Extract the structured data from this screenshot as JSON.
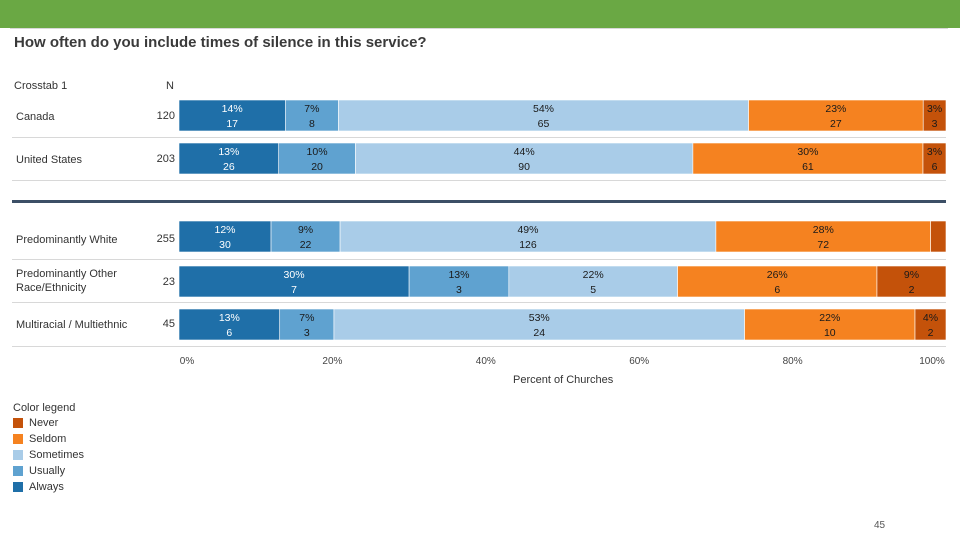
{
  "title": "How often do you include times of silence in this service?",
  "header": {
    "crosstab": "Crosstab 1",
    "n": "N"
  },
  "rows": [
    {
      "label": "Canada",
      "n": "120",
      "segments": [
        {
          "pct": "14%",
          "count": "17"
        },
        {
          "pct": "7%",
          "count": "8"
        },
        {
          "pct": "54%",
          "count": "65"
        },
        {
          "pct": "23%",
          "count": "27"
        },
        {
          "pct": "3%",
          "count": "3"
        }
      ]
    },
    {
      "label": "United States",
      "n": "203",
      "segments": [
        {
          "pct": "13%",
          "count": "26"
        },
        {
          "pct": "10%",
          "count": "20"
        },
        {
          "pct": "44%",
          "count": "90"
        },
        {
          "pct": "30%",
          "count": "61"
        },
        {
          "pct": "3%",
          "count": "6"
        }
      ]
    },
    {
      "label": "Predominantly White",
      "n": "255",
      "segments": [
        {
          "pct": "12%",
          "count": "30"
        },
        {
          "pct": "9%",
          "count": "22"
        },
        {
          "pct": "49%",
          "count": "126"
        },
        {
          "pct": "28%",
          "count": "72"
        },
        {
          "pct": "",
          "count": ""
        }
      ]
    },
    {
      "label": "Predominantly Other Race/Ethnicity",
      "n": "23",
      "segments": [
        {
          "pct": "30%",
          "count": "7"
        },
        {
          "pct": "13%",
          "count": "3"
        },
        {
          "pct": "22%",
          "count": "5"
        },
        {
          "pct": "26%",
          "count": "6"
        },
        {
          "pct": "9%",
          "count": "2"
        }
      ]
    },
    {
      "label": "Multiracial / Multiethnic",
      "n": "45",
      "segments": [
        {
          "pct": "13%",
          "count": "6"
        },
        {
          "pct": "7%",
          "count": "3"
        },
        {
          "pct": "53%",
          "count": "24"
        },
        {
          "pct": "22%",
          "count": "10"
        },
        {
          "pct": "4%",
          "count": "2"
        }
      ]
    }
  ],
  "chart_data": {
    "type": "bar",
    "orientation": "horizontal-stacked-100",
    "categories": [
      "Canada",
      "United States",
      "Predominantly White",
      "Predominantly Other Race/Ethnicity",
      "Multiracial / Multiethnic"
    ],
    "series": [
      {
        "name": "Always",
        "color": "#1f6fa8",
        "values": [
          14,
          13,
          12,
          30,
          13
        ]
      },
      {
        "name": "Usually",
        "color": "#5fa2d0",
        "values": [
          7,
          10,
          9,
          13,
          7
        ]
      },
      {
        "name": "Sometimes",
        "color": "#a9cce8",
        "values": [
          54,
          44,
          49,
          22,
          53
        ]
      },
      {
        "name": "Seldom",
        "color": "#f58220",
        "values": [
          23,
          30,
          28,
          26,
          22
        ]
      },
      {
        "name": "Never",
        "color": "#c4520a",
        "values": [
          3,
          3,
          2,
          9,
          4
        ]
      }
    ],
    "xlabel": "Percent of Churches",
    "xticks": [
      "0%",
      "20%",
      "40%",
      "60%",
      "80%",
      "100%"
    ],
    "xlim": [
      0,
      100
    ]
  },
  "legend": {
    "title": "Color legend",
    "items": [
      {
        "label": "Never",
        "color": "#c4520a"
      },
      {
        "label": "Seldom",
        "color": "#f58220"
      },
      {
        "label": "Sometimes",
        "color": "#a9cce8"
      },
      {
        "label": "Usually",
        "color": "#5fa2d0"
      },
      {
        "label": "Always",
        "color": "#1f6fa8"
      }
    ]
  },
  "page_number": "45"
}
